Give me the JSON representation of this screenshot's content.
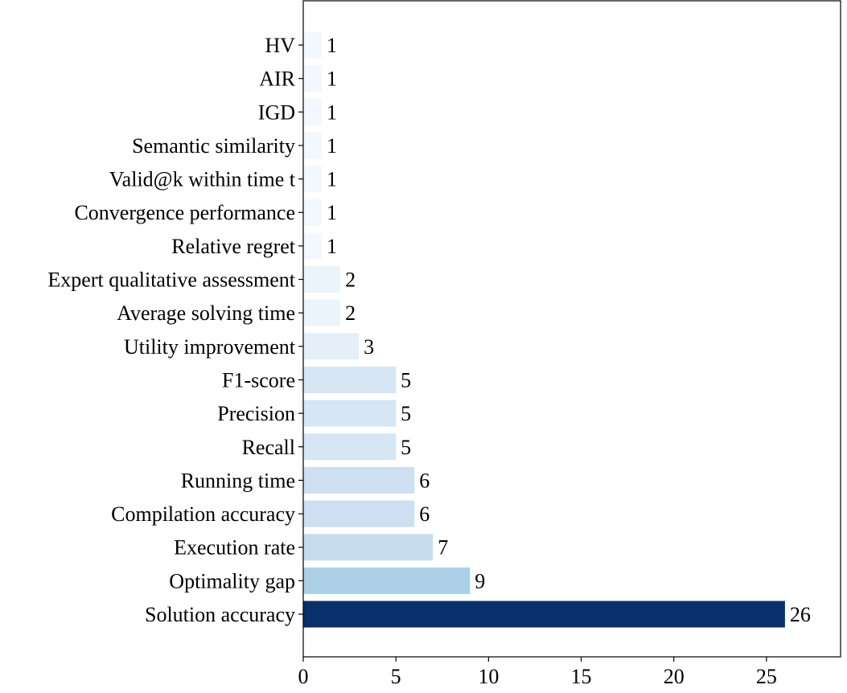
{
  "chart_data": {
    "type": "bar",
    "orientation": "horizontal",
    "title": "",
    "xlabel": "",
    "ylabel": "",
    "categories": [
      "Solution accuracy",
      "Optimality gap",
      "Execution rate",
      "Compilation accuracy",
      "Running time",
      "Recall",
      "Precision",
      "F1-score",
      "Utility improvement",
      "Average solving time",
      "Expert qualitative assessment",
      "Relative regret",
      "Convergence performance",
      "Valid@k within time t",
      "Semantic similarity",
      "IGD",
      "AIR",
      "HV"
    ],
    "values": [
      26,
      9,
      7,
      6,
      6,
      5,
      5,
      5,
      3,
      2,
      2,
      1,
      1,
      1,
      1,
      1,
      1,
      1
    ],
    "value_labels": [
      "26",
      "9",
      "7",
      "6",
      "6",
      "5",
      "5",
      "5",
      "3",
      "2",
      "2",
      "1",
      "1",
      "1",
      "1",
      "1",
      "1",
      "1"
    ],
    "xlim": [
      0,
      29
    ],
    "xticks": [
      0,
      5,
      10,
      15,
      20,
      25
    ],
    "xtick_labels": [
      "0",
      "5",
      "10",
      "15",
      "20",
      "25"
    ],
    "grid": false,
    "colormap": "Blues",
    "bar_colors": [
      "#08306b",
      "#abd0e6",
      "#c8dcf0",
      "#cddff1",
      "#cddff1",
      "#d6e6f4",
      "#d6e6f4",
      "#d6e6f4",
      "#e5eff9",
      "#ecf4fb",
      "#ecf4fb",
      "#f2f8fd",
      "#f2f8fd",
      "#f2f8fd",
      "#f2f8fd",
      "#f2f8fd",
      "#f2f8fd",
      "#f2f8fd"
    ]
  }
}
